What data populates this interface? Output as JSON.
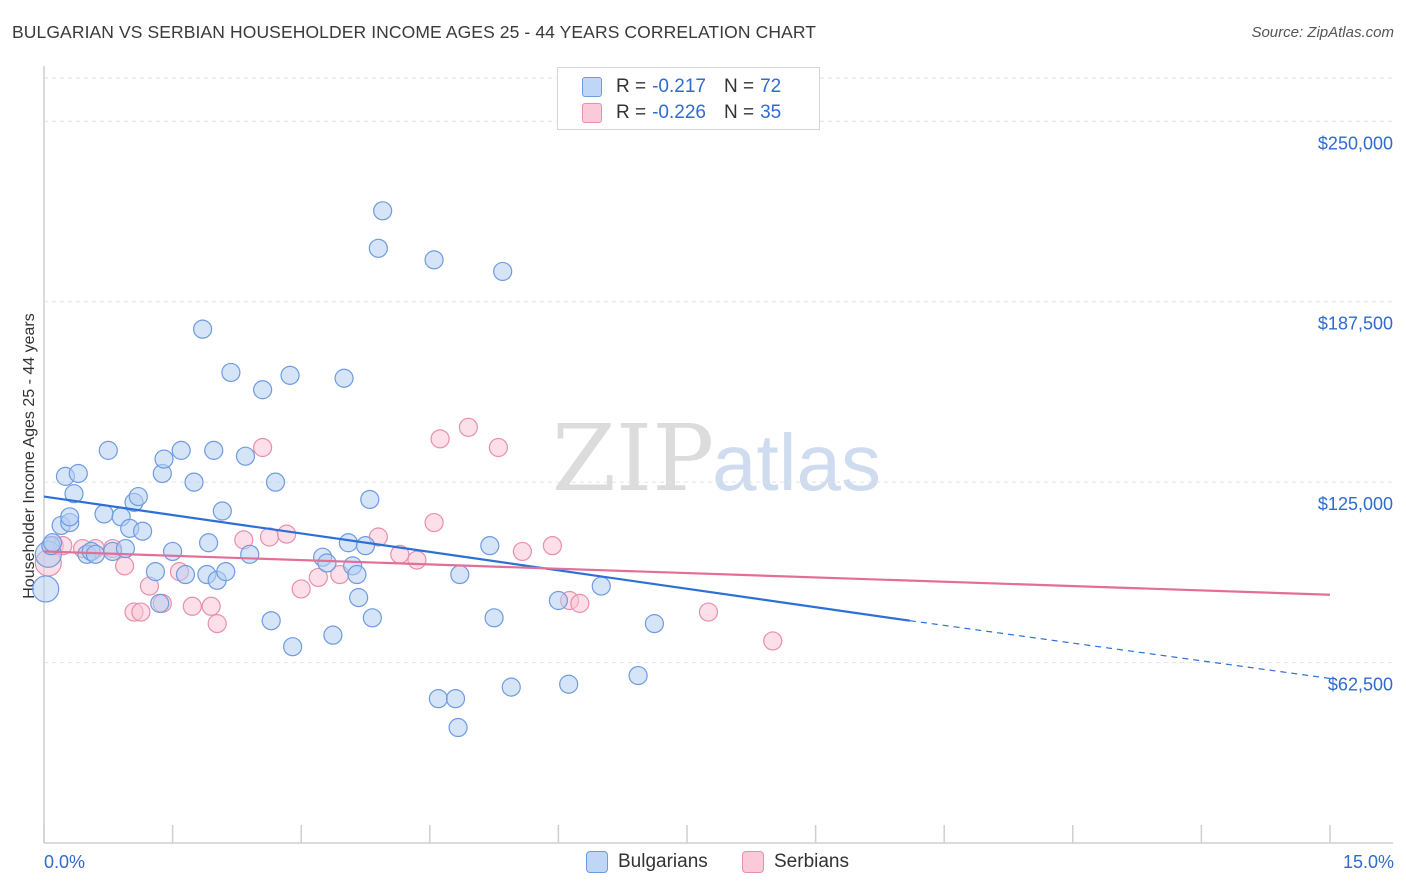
{
  "title": "BULGARIAN VS SERBIAN HOUSEHOLDER INCOME AGES 25 - 44 YEARS CORRELATION CHART",
  "source": "Source: ZipAtlas.com",
  "watermark": {
    "zip": "ZIP",
    "atlas": "atlas"
  },
  "legend_top": [
    {
      "r_label": "R =",
      "r_value": "-0.217",
      "n_label": "N =",
      "n_value": "72"
    },
    {
      "r_label": "R =",
      "r_value": "-0.226",
      "n_label": "N =",
      "n_value": "35"
    }
  ],
  "legend_bottom": [
    "Bulgarians",
    "Serbians"
  ],
  "x_tick_labels": [
    "0.0%",
    "15.0%"
  ],
  "chart_data": {
    "type": "scatter",
    "title": "BULGARIAN VS SERBIAN HOUSEHOLDER INCOME AGES 25 - 44 YEARS CORRELATION CHART",
    "xlabel": "",
    "ylabel": "Householder Income Ages 25 - 44 years",
    "xlim": [
      0,
      15
    ],
    "ylim": [
      0,
      265000
    ],
    "y_ticks": [
      62500,
      125000,
      187500,
      250000
    ],
    "y_tick_labels": [
      "$62,500",
      "$125,000",
      "$187,500",
      "$250,000"
    ],
    "colors": {
      "Bulgarians": "#6e9be0",
      "Serbians": "#e88fab",
      "blue_line": "#2d6fd6",
      "pink_line": "#e36e98",
      "tick_text": "#2f6bcf"
    },
    "series": [
      {
        "name": "Bulgarians",
        "x": [
          0.02,
          0.05,
          0.08,
          0.1,
          0.2,
          0.25,
          0.3,
          0.3,
          0.35,
          0.4,
          0.5,
          0.55,
          0.6,
          0.7,
          0.75,
          0.8,
          0.9,
          0.95,
          1.0,
          1.05,
          1.1,
          1.15,
          1.3,
          1.35,
          1.38,
          1.4,
          1.5,
          1.6,
          1.65,
          1.75,
          1.85,
          1.9,
          1.92,
          1.98,
          2.02,
          2.08,
          2.12,
          2.18,
          2.35,
          2.4,
          2.55,
          2.65,
          2.7,
          2.87,
          2.9,
          3.25,
          3.3,
          3.37,
          3.5,
          3.55,
          3.6,
          3.65,
          3.67,
          3.75,
          3.8,
          3.83,
          3.9,
          3.95,
          4.55,
          4.6,
          4.8,
          4.83,
          4.85,
          5.2,
          5.25,
          5.35,
          5.45,
          6.0,
          6.12,
          6.5,
          6.93,
          7.12
        ],
        "y": [
          88000,
          100000,
          103000,
          104000,
          110000,
          127000,
          111000,
          113000,
          121000,
          128000,
          100000,
          101000,
          100000,
          114000,
          136000,
          101000,
          113000,
          102000,
          109000,
          118000,
          120000,
          108000,
          94000,
          83000,
          128000,
          133000,
          101000,
          136000,
          93000,
          125000,
          178000,
          93000,
          104000,
          136000,
          91000,
          115000,
          94000,
          163000,
          134000,
          100000,
          157000,
          77000,
          125000,
          162000,
          68000,
          99000,
          97000,
          72000,
          161000,
          104000,
          96000,
          93000,
          85000,
          103000,
          119000,
          78000,
          206000,
          219000,
          202000,
          50000,
          50000,
          40000,
          93000,
          103000,
          78000,
          198000,
          54000,
          84000,
          55000,
          89000,
          58000,
          76000
        ]
      },
      {
        "name": "Serbians",
        "x": [
          0.05,
          0.12,
          0.22,
          0.45,
          0.6,
          0.8,
          0.94,
          1.05,
          1.13,
          1.23,
          1.38,
          1.58,
          1.73,
          1.95,
          2.02,
          2.33,
          2.55,
          2.63,
          2.83,
          3.0,
          3.2,
          3.45,
          3.9,
          4.15,
          4.35,
          4.55,
          4.62,
          4.95,
          5.3,
          5.58,
          5.93,
          6.13,
          6.25,
          7.75,
          8.5
        ],
        "y": [
          97000,
          103000,
          103000,
          102000,
          102000,
          102000,
          96000,
          80000,
          80000,
          89000,
          83000,
          94000,
          82000,
          82000,
          76000,
          105000,
          137000,
          106000,
          107000,
          88000,
          92000,
          93000,
          106000,
          100000,
          98000,
          111000,
          140000,
          144000,
          137000,
          101000,
          103000,
          84000,
          83000,
          80000,
          70000
        ]
      }
    ],
    "trend_lines": [
      {
        "series": "Bulgarians",
        "x": [
          0,
          10.1
        ],
        "y": [
          120000,
          77000
        ],
        "dashed_extension": {
          "x": [
            10.1,
            15
          ],
          "y": [
            77000,
            57000
          ]
        }
      },
      {
        "series": "Serbians",
        "x": [
          0,
          15
        ],
        "y": [
          101000,
          86000
        ]
      }
    ]
  }
}
